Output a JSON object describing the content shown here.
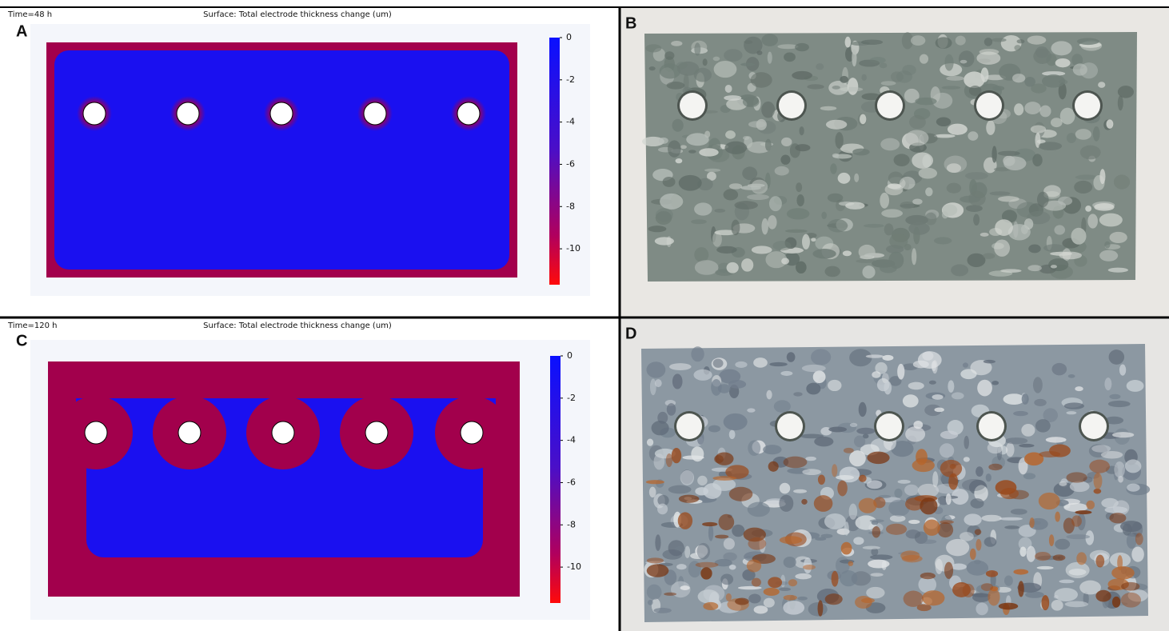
{
  "panels": [
    {
      "label": "A",
      "time": "Time=48 h",
      "title": "Surface: Total electrode thickness change (um)",
      "colorbar": {
        "lim": [
          -11.7,
          0
        ],
        "ticks": [
          0,
          -2,
          -4,
          -6,
          -8,
          -10
        ]
      }
    },
    {
      "label": "B"
    },
    {
      "label": "C",
      "time": "Time=120 h",
      "title": "Surface: Total electrode thickness change (um)",
      "colorbar": {
        "lim": [
          -11.7,
          0
        ],
        "ticks": [
          0,
          -2,
          -4,
          -6,
          -8,
          -10
        ]
      }
    },
    {
      "label": "D"
    }
  ]
}
